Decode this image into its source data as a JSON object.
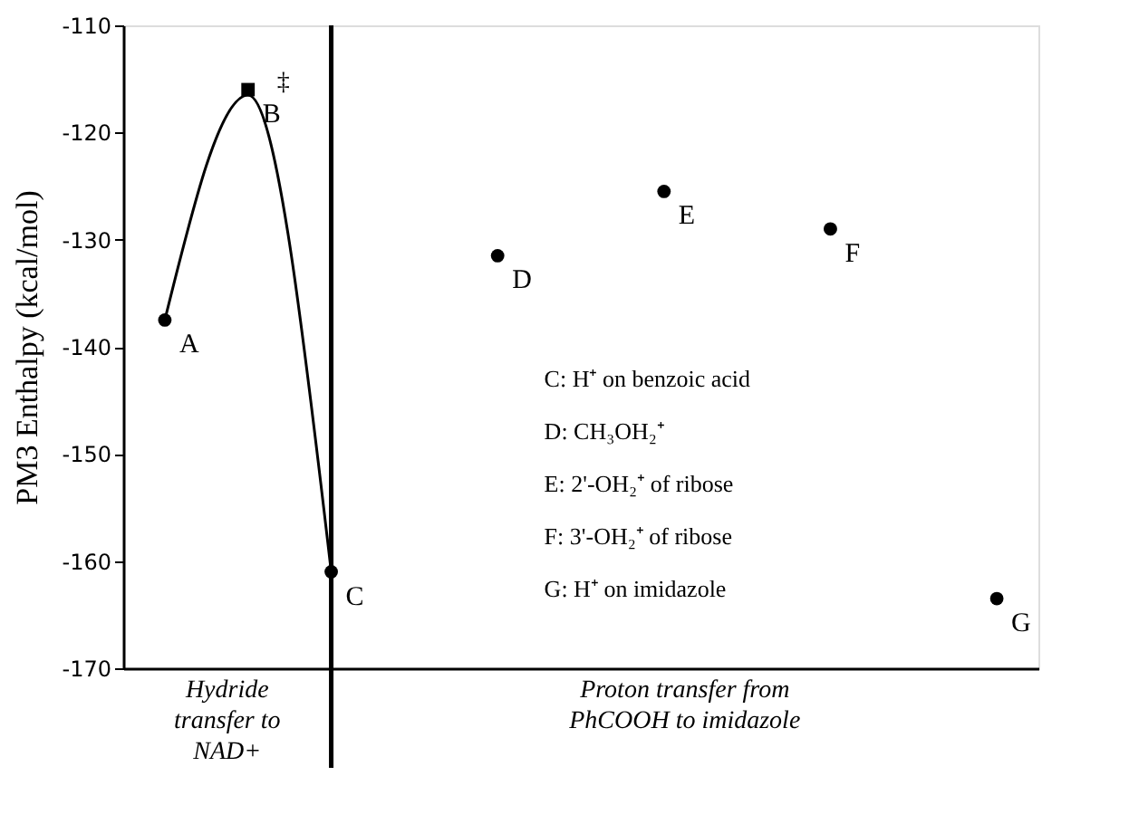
{
  "chart_data": {
    "type": "scatter",
    "ylabel": "PM3 Enthalpy (kcal/mol)",
    "categories": [
      null,
      null,
      null,
      null,
      null,
      null,
      null,
      null,
      null,
      null,
      null
    ],
    "ylim": [
      -170,
      -110
    ],
    "yticks": [
      -170,
      -160,
      -150,
      -140,
      -130,
      -120,
      -110
    ],
    "tick_labels": "y",
    "series": [
      {
        "type": "line",
        "color": "#000000",
        "marker": "none",
        "values": [
          -137.5,
          -116.5,
          -161,
          null,
          null,
          null,
          null,
          null,
          null,
          null,
          null
        ]
      },
      {
        "color": "#000000",
        "marker": "circle",
        "values": [
          -137.5,
          null,
          -161,
          null,
          -131.5,
          null,
          -125.5,
          null,
          -129,
          null,
          -163.5
        ],
        "value_labels": [
          "A",
          null,
          "C",
          null,
          "D",
          null,
          "E",
          null,
          "F",
          null,
          "G"
        ]
      },
      {
        "color": "#000000",
        "marker": "square",
        "values": [
          null,
          -116,
          null,
          null,
          null,
          null,
          null,
          null,
          null,
          null,
          null
        ],
        "value_labels": [
          null,
          "B",
          null,
          null,
          null,
          null,
          null,
          null,
          null,
          null,
          null
        ]
      }
    ],
    "ref_lines": [
      {
        "axis": "x",
        "label": null,
        "color": "#000000"
      }
    ],
    "annotations": [
      "‡",
      "C: H⁺ on benzoic acid",
      "D: CH₃OH₂⁺",
      "E: 2'-OH₂⁺ of ribose",
      "F: 3'-OH₂⁺ of ribose",
      "G: H⁺ on imidazole",
      "Hydride transfer to NAD+",
      "Proton transfer from PhCOOH to imidazole"
    ]
  }
}
